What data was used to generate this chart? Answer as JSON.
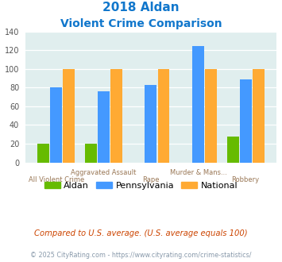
{
  "title_line1": "2018 Aldan",
  "title_line2": "Violent Crime Comparison",
  "categories": [
    "All Violent Crime",
    "Aggravated Assault",
    "Rape",
    "Murder & Mans...",
    "Robbery"
  ],
  "top_labels": [
    "",
    "Aggravated Assault",
    "",
    "Murder & Mans...",
    ""
  ],
  "bottom_labels": [
    "All Violent Crime",
    "",
    "Rape",
    "",
    "Robbery"
  ],
  "aldan": [
    20,
    20,
    0,
    0,
    28
  ],
  "pennsylvania": [
    80,
    76,
    83,
    124,
    89
  ],
  "national": [
    100,
    100,
    100,
    100,
    100
  ],
  "color_aldan": "#66bb00",
  "color_pennsylvania": "#4499ff",
  "color_national": "#ffaa33",
  "ylim": [
    0,
    140
  ],
  "yticks": [
    0,
    20,
    40,
    60,
    80,
    100,
    120,
    140
  ],
  "bg_color": "#e0eeee",
  "title_color": "#1177cc",
  "footnote": "Compared to U.S. average. (U.S. average equals 100)",
  "footnote2": "© 2025 CityRating.com - https://www.cityrating.com/crime-statistics/",
  "footnote_color": "#cc4400",
  "footnote2_color": "#8899aa",
  "legend_labels": [
    "Aldan",
    "Pennsylvania",
    "National"
  ],
  "bar_width": 0.25
}
